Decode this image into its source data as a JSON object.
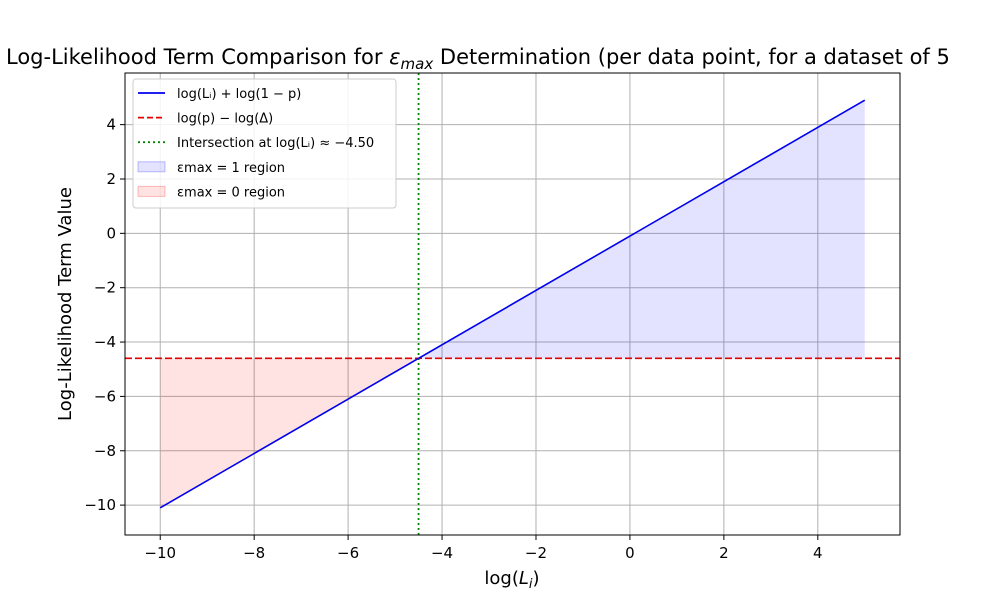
{
  "chart_data": {
    "type": "line",
    "title": {
      "prefix": "Log-Likelihood Term Comparison for ",
      "symbol": "ε",
      "subscript": "max",
      "suffix": " Determination (per data point, for a dataset of 5"
    },
    "xlabel": {
      "main": "log(",
      "var": "L",
      "sub": "i",
      "close": ")"
    },
    "ylabel": "Log-Likelihood Term Value",
    "xlim": [
      -10.75,
      5.75
    ],
    "ylim": [
      -11.1,
      5.9
    ],
    "xticks": [
      -10,
      -8,
      -6,
      -4,
      -2,
      0,
      2,
      4
    ],
    "yticks": [
      -10,
      -8,
      -6,
      -4,
      -2,
      0,
      2,
      4
    ],
    "xtick_labels": [
      "−10",
      "−8",
      "−6",
      "−4",
      "−2",
      "0",
      "2",
      "4"
    ],
    "ytick_labels": [
      "−10",
      "−8",
      "−6",
      "−4",
      "−2",
      "0",
      "2",
      "4"
    ],
    "grid": true,
    "legend_position": "upper-left",
    "series": [
      {
        "name": "log(L_i) + log(1 − p)",
        "legend": "log(Lᵢ) + log(1 − p)",
        "style": "solid",
        "color": "#0000ee",
        "x": [
          -10,
          5
        ],
        "y": [
          -10.1,
          4.9
        ]
      },
      {
        "name": "log(p) − log(Δ)",
        "legend": "log(p) − log(Δ)",
        "style": "dashed",
        "color": "#e00000",
        "y_constant": -4.6
      },
      {
        "name": "Intersection at log(L_i) ≈ −4.50",
        "legend": "Intersection at log(Lᵢ) ≈ −4.50",
        "style": "dotted",
        "color": "#008800",
        "x_constant": -4.5
      }
    ],
    "regions": [
      {
        "name": "ε_max = 1 region",
        "legend": "εmax = 1 region",
        "color": "#0000ff",
        "opacity": 0.11,
        "x_range": [
          -4.5,
          5
        ]
      },
      {
        "name": "ε_max = 0 region",
        "legend": "εmax = 0 region",
        "color": "#ff0000",
        "opacity": 0.11,
        "x_range": [
          -10,
          -4.5
        ]
      }
    ]
  }
}
